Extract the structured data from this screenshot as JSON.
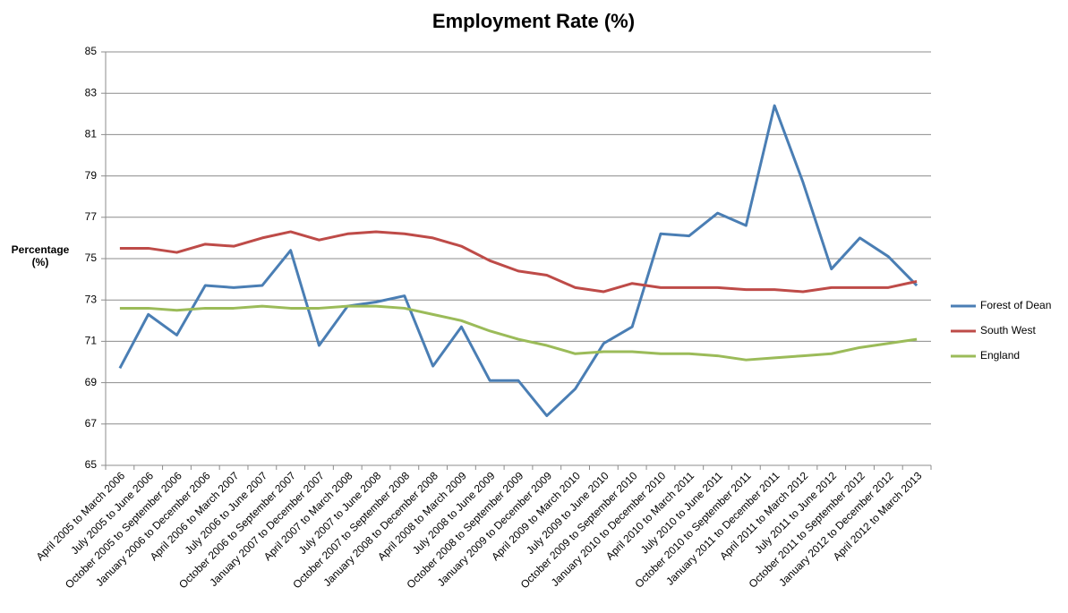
{
  "chart_data": {
    "type": "line",
    "title": "Employment Rate (%)",
    "y_label": "Percentage (%)",
    "categories": [
      "April 2005 to March 2006",
      "July 2005 to June 2006",
      "October 2005 to September 2006",
      "January 2006 to December 2006",
      "April 2006 to March 2007",
      "July 2006 to June 2007",
      "October 2006 to September 2007",
      "January 2007 to December 2007",
      "April 2007 to March 2008",
      "July 2007 to June 2008",
      "October 2007 to September 2008",
      "January 2008 to December 2008",
      "April 2008 to March 2009",
      "July 2008 to June 2009",
      "October 2008 to September 2009",
      "January 2009 to December 2009",
      "April 2009 to March 2010",
      "July 2009 to June 2010",
      "October 2009 to September 2010",
      "January 2010 to December 2010",
      "April 2010 to March 2011",
      "July 2010 to June 2011",
      "October 2010 to September 2011",
      "January 2011 to December 2011",
      "April 2011 to March 2012",
      "July 2011 to June 2012",
      "October 2011 to September 2012",
      "January 2012 to December 2012",
      "April 2012 to March 2013"
    ],
    "series": [
      {
        "name": "Forest of Dean",
        "color": "#4a7eb4",
        "values": [
          69.7,
          72.3,
          71.3,
          73.7,
          73.6,
          73.7,
          75.4,
          70.8,
          72.7,
          72.9,
          73.2,
          69.8,
          71.7,
          69.1,
          69.1,
          67.4,
          68.7,
          70.9,
          71.7,
          76.2,
          76.1,
          77.2,
          76.6,
          82.4,
          78.7,
          74.5,
          76.0,
          75.1,
          73.7
        ]
      },
      {
        "name": "South West",
        "color": "#be4b48",
        "values": [
          75.5,
          75.5,
          75.3,
          75.7,
          75.6,
          76.0,
          76.3,
          75.9,
          76.2,
          76.3,
          76.2,
          76.0,
          75.6,
          74.9,
          74.4,
          74.2,
          73.6,
          73.4,
          73.8,
          73.6,
          73.6,
          73.6,
          73.5,
          73.5,
          73.4,
          73.6,
          73.6,
          73.6,
          73.9
        ]
      },
      {
        "name": "England",
        "color": "#9bbb59",
        "values": [
          72.6,
          72.6,
          72.5,
          72.6,
          72.6,
          72.7,
          72.6,
          72.6,
          72.7,
          72.7,
          72.6,
          72.3,
          72.0,
          71.5,
          71.1,
          70.8,
          70.4,
          70.5,
          70.5,
          70.4,
          70.4,
          70.3,
          70.1,
          70.2,
          70.3,
          70.4,
          70.7,
          70.9,
          71.1
        ]
      }
    ],
    "ylim": [
      65,
      85
    ],
    "yticks": [
      65,
      67,
      69,
      71,
      73,
      75,
      77,
      79,
      81,
      83,
      85
    ],
    "grid": true,
    "legend": "right"
  }
}
